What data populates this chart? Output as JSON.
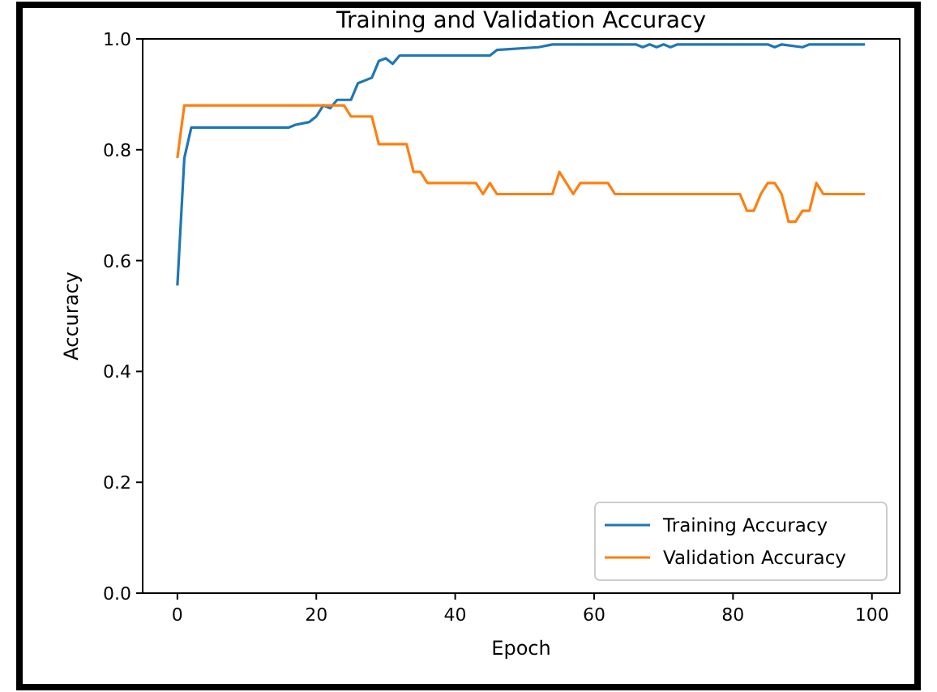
{
  "chart_data": {
    "type": "line",
    "title": "Training and Validation Accuracy",
    "xlabel": "Epoch",
    "ylabel": "Accuracy",
    "xlim": [
      -5,
      104
    ],
    "xticks": [
      0,
      20,
      40,
      60,
      80,
      100
    ],
    "ylim": [
      0,
      1
    ],
    "yticks": [
      {
        "value": 0,
        "label": "0.0"
      },
      {
        "value": 0.2,
        "label": "0.2"
      },
      {
        "value": 0.4,
        "label": "0.4"
      },
      {
        "value": 0.6,
        "label": "0.6"
      },
      {
        "value": 0.8,
        "label": "0.8"
      },
      {
        "value": 1,
        "label": "1.0"
      }
    ],
    "legend": "bottom right",
    "grid": false,
    "series": [
      {
        "name": "Training Accuracy",
        "color": "#1f77b4",
        "x": [
          0,
          1,
          2,
          16,
          17,
          19,
          20,
          21,
          22,
          23,
          25,
          26,
          28,
          29,
          30,
          31,
          32,
          45,
          46,
          52,
          54,
          66,
          67,
          68,
          69,
          70,
          71,
          72,
          85,
          86,
          87,
          90,
          91,
          99
        ],
        "values": [
          0.555,
          0.785,
          0.84,
          0.84,
          0.845,
          0.85,
          0.86,
          0.88,
          0.875,
          0.89,
          0.89,
          0.92,
          0.93,
          0.96,
          0.965,
          0.955,
          0.97,
          0.97,
          0.98,
          0.985,
          0.99,
          0.99,
          0.985,
          0.99,
          0.985,
          0.99,
          0.985,
          0.99,
          0.99,
          0.985,
          0.99,
          0.985,
          0.99,
          0.99
        ]
      },
      {
        "name": "Validation Accuracy",
        "color": "#ff7f0e",
        "x": [
          0,
          1,
          24,
          25,
          28,
          29,
          33,
          34,
          35,
          36,
          43,
          44,
          45,
          46,
          54,
          55,
          57,
          58,
          62,
          63,
          81,
          82,
          83,
          84,
          85,
          86,
          87,
          88,
          89,
          90,
          91,
          92,
          93,
          99
        ],
        "values": [
          0.785,
          0.88,
          0.88,
          0.86,
          0.86,
          0.81,
          0.81,
          0.76,
          0.76,
          0.74,
          0.74,
          0.72,
          0.74,
          0.72,
          0.72,
          0.76,
          0.72,
          0.74,
          0.74,
          0.72,
          0.72,
          0.69,
          0.69,
          0.72,
          0.74,
          0.74,
          0.72,
          0.67,
          0.67,
          0.69,
          0.69,
          0.74,
          0.72,
          0.72
        ]
      }
    ]
  }
}
